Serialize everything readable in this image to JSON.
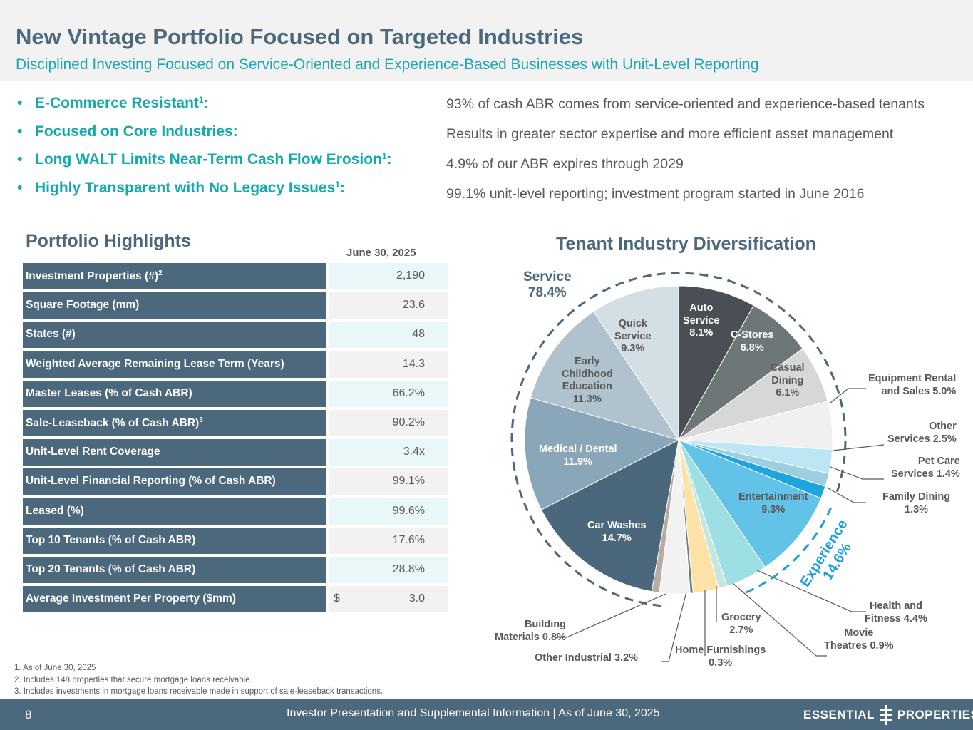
{
  "header": {
    "title": "New Vintage Portfolio Focused on Targeted Industries",
    "subtitle": "Disciplined Investing Focused on Service-Oriented and Experience-Based Businesses with Unit-Level Reporting"
  },
  "bullets": [
    {
      "text": "E-Commerce Resistant",
      "sup": "1",
      "detail": "93% of cash ABR comes from service-oriented and experience-based tenants"
    },
    {
      "text": "Focused on Core Industries",
      "sup": "",
      "detail": "Results in greater sector expertise and more efficient asset management"
    },
    {
      "text": "Long WALT Limits Near-Term Cash Flow Erosion",
      "sup": "1",
      "detail": "4.9% of our ABR expires through 2029"
    },
    {
      "text": "Highly Transparent with No Legacy Issues",
      "sup": "1",
      "detail": "99.1% unit-level reporting; investment program started in June 2016"
    }
  ],
  "highlights": {
    "title": "Portfolio Highlights",
    "column_header": "June 30, 2025",
    "rows": [
      {
        "label": "Investment Properties (#)",
        "sup": "2",
        "value": "2,190"
      },
      {
        "label": "Square Footage (mm)",
        "sup": "",
        "value": "23.6"
      },
      {
        "label": "States (#)",
        "sup": "",
        "value": "48"
      },
      {
        "label": "Weighted Average Remaining Lease Term (Years)",
        "sup": "",
        "value": "14.3"
      },
      {
        "label": "Master Leases (% of Cash ABR)",
        "sup": "",
        "value": "66.2%"
      },
      {
        "label": "Sale-Leaseback (% of Cash ABR)",
        "sup": "3",
        "value": "90.2%"
      },
      {
        "label": "Unit-Level Rent Coverage",
        "sup": "",
        "value": "3.4x"
      },
      {
        "label": "Unit-Level Financial Reporting (% of Cash ABR)",
        "sup": "",
        "value": "99.1%"
      },
      {
        "label": "Leased (%)",
        "sup": "",
        "value": "99.6%"
      },
      {
        "label": "Top 10 Tenants (% of Cash ABR)",
        "sup": "",
        "value": "17.6%"
      },
      {
        "label": "Top 20 Tenants (% of Cash ABR)",
        "sup": "",
        "value": "28.8%"
      },
      {
        "label": "Average Investment Per Property ($mm)",
        "sup": "",
        "value": "3.0",
        "currency": "$"
      }
    ]
  },
  "chart_data": {
    "type": "pie",
    "title": "Tenant Industry Diversification",
    "groups": [
      {
        "name": "Service",
        "value": "78.4%",
        "color": "#4b687c"
      },
      {
        "name": "Experience",
        "value": "14.6%",
        "color": "#1ea0dd"
      }
    ],
    "slices": [
      {
        "label": "Auto Service",
        "value": 8.1,
        "color": "#4a4f55"
      },
      {
        "label": "C-Stores",
        "value": 6.8,
        "color": "#6d7777"
      },
      {
        "label": "Casual Dining",
        "value": 6.1,
        "color": "#d5d7d9"
      },
      {
        "label": "Equipment Rental and Sales",
        "value": 5.0,
        "color": "#f0f0f0"
      },
      {
        "label": "Other Services",
        "value": 2.5,
        "color": "#bde6f4"
      },
      {
        "label": "Pet Care Services",
        "value": 1.4,
        "color": "#9ccfe0"
      },
      {
        "label": "Family Dining",
        "value": 1.3,
        "color": "#1fa5dd"
      },
      {
        "label": "Entertainment",
        "value": 9.3,
        "color": "#62c2e8"
      },
      {
        "label": "Health and Fitness",
        "value": 4.4,
        "color": "#9edfe4"
      },
      {
        "label": "Movie Theatres",
        "value": 0.9,
        "color": "#c6e6e2"
      },
      {
        "label": "Grocery",
        "value": 2.7,
        "color": "#fde3a7"
      },
      {
        "label": "Home Furnishings",
        "value": 0.3,
        "color": "#6b7a85"
      },
      {
        "label": "Other Industrial",
        "value": 3.2,
        "color": "#f2f2f2"
      },
      {
        "label": "Building Materials",
        "value": 0.8,
        "color": "#b6aca0"
      },
      {
        "label": "Car Washes",
        "value": 14.7,
        "color": "#4a677c"
      },
      {
        "label": "Medical  / Dental",
        "value": 11.9,
        "color": "#8aa6b9"
      },
      {
        "label": "Early Childhood Education",
        "value": 11.3,
        "color": "#b0c2ce"
      },
      {
        "label": "Quick Service",
        "value": 9.3,
        "color": "#d4dee5"
      }
    ]
  },
  "footnotes": [
    "1. As of June 30, 2025",
    "2. Includes 148 properties that secure mortgage loans receivable.",
    "3. Includes investments in mortgage loans receivable made in support of sale-leaseback transactions."
  ],
  "footer": {
    "page": "8",
    "text": "Investor Presentation and Supplemental Information |  As of June 30, 2025",
    "logo": "ESSENTIAL PROPERTIES"
  }
}
